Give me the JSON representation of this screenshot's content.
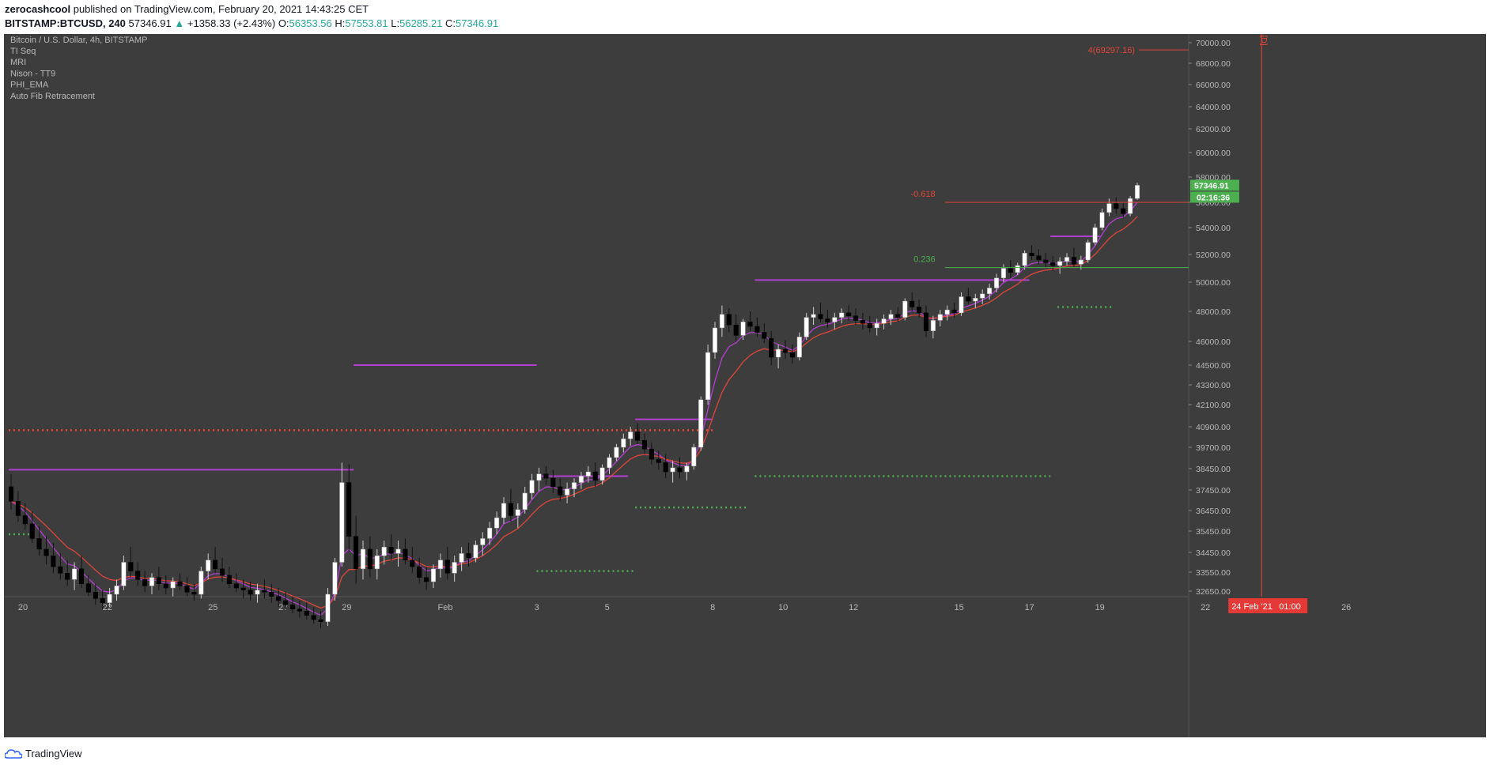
{
  "header": {
    "user": "zerocashcool",
    "published_text": "published on TradingView.com, February 20, 2021 14:43:25 CET",
    "symbol": "BITSTAMP:BTCUSD, 240",
    "last": "57346.91",
    "change": "+1358.33 (+2.43%)",
    "o_label": "O:",
    "o": "56353.56",
    "h_label": "H:",
    "h": "57553.81",
    "l_label": "L:",
    "l": "56285.21",
    "c_label": "C:",
    "c": "57346.91"
  },
  "legend": {
    "title": "Bitcoin / U.S. Dollar, 4h, BITSTAMP",
    "indicators": [
      "TI Seq",
      "MRI",
      "Nison - TT9",
      "PHI_EMA",
      "Auto Fib Retracement"
    ]
  },
  "footer": {
    "brand": "TradingView"
  },
  "colors": {
    "background": "#3d3d3d",
    "axis_bg": "#3d3d3d",
    "candle_up": "#ffffff",
    "candle_down": "#000000",
    "ema_fast": "#b33fd0",
    "ema_slow": "#e0453a",
    "fib_red": "#e0453a",
    "fib_green": "#4caf50",
    "resistance": "#b33fd0",
    "support_dots_red": "#f44336",
    "support_dots_green": "#4caf50",
    "seq_green": "#3c9a3c",
    "price_tag": "#4caf50",
    "crosshair": "#f44336"
  },
  "chart_data": {
    "type": "candlestick",
    "title": "Bitcoin / U.S. Dollar, 4h, BITSTAMP",
    "price_axis": {
      "ticks": [
        70000,
        68000,
        66000,
        64000,
        62000,
        60000,
        58000,
        56000,
        54000,
        52000,
        50000,
        48000,
        46000,
        44500,
        43300,
        42100,
        40900,
        39700,
        38450,
        37450,
        36450,
        35450,
        34450,
        33550,
        32650
      ],
      "tick_labels": [
        "70000.00",
        "68000.00",
        "66000.00",
        "64000.00",
        "62000.00",
        "60000.00",
        "58000.00",
        "56000.00",
        "54000.00",
        "52000.00",
        "50000.00",
        "48000.00",
        "46000.00",
        "44500.00",
        "43300.00",
        "42100.00",
        "40900.00",
        "39700.00",
        "38450.00",
        "37450.00",
        "36450.00",
        "35450.00",
        "34450.00",
        "33550.00",
        "32650.00"
      ]
    },
    "time_axis": {
      "labels": [
        "20",
        "22",
        "25",
        "27",
        "29",
        "Feb",
        "3",
        "5",
        "8",
        "10",
        "12",
        "15",
        "17",
        "19",
        "22",
        "26"
      ],
      "label_bar": [
        0,
        12,
        27,
        37,
        46,
        60,
        73,
        83,
        98,
        108,
        118,
        133,
        143,
        153,
        168,
        188
      ]
    },
    "last_price": "57346.91",
    "countdown": "02:16:36",
    "crosshair_time": "24 Feb '21",
    "crosshair_clock": "01:00",
    "crosshair_bar": 178,
    "interval_marker": "[D]",
    "fib_levels": [
      {
        "label": "-0.618",
        "price": 56000,
        "start_bar": 133
      },
      {
        "label": "0.236",
        "price": 51050,
        "start_bar": 133
      }
    ],
    "target": {
      "label": "4(69297.16)",
      "price": 69297.16,
      "start_bar": 160
    },
    "resistance_lines": [
      {
        "price": 38400,
        "from": 0,
        "to": 49
      },
      {
        "price": 44500,
        "from": 49,
        "to": 75
      },
      {
        "price": 41300,
        "from": 89,
        "to": 100
      },
      {
        "price": 38100,
        "from": 75,
        "to": 88
      },
      {
        "price": 50150,
        "from": 106,
        "to": 145
      },
      {
        "price": 53350,
        "from": 148,
        "to": 155
      }
    ],
    "support_dots": [
      {
        "price": 40700,
        "from": 0,
        "to": 100,
        "color": "red"
      },
      {
        "price": 35300,
        "from": 0,
        "to": 3,
        "color": "green"
      },
      {
        "price": 33600,
        "from": 75,
        "to": 89,
        "color": "green"
      },
      {
        "price": 36600,
        "from": 89,
        "to": 105,
        "color": "green"
      },
      {
        "price": 38100,
        "from": 106,
        "to": 148,
        "color": "green"
      },
      {
        "price": 48300,
        "from": 149,
        "to": 157,
        "color": "green"
      }
    ],
    "ohlc": [
      [
        37600,
        38200,
        36500,
        36900
      ],
      [
        36900,
        37400,
        35900,
        36200
      ],
      [
        36200,
        36800,
        35500,
        35800
      ],
      [
        35800,
        36400,
        34900,
        35100
      ],
      [
        35100,
        35700,
        34300,
        34600
      ],
      [
        34600,
        35200,
        33900,
        34300
      ],
      [
        34300,
        34900,
        33500,
        33800
      ],
      [
        33800,
        34400,
        33200,
        33500
      ],
      [
        33500,
        34100,
        32900,
        33200
      ],
      [
        33200,
        34000,
        32700,
        33700
      ],
      [
        33700,
        34300,
        32800,
        33000
      ],
      [
        33000,
        33400,
        32400,
        32600
      ],
      [
        32600,
        33000,
        32000,
        32300
      ],
      [
        32300,
        32700,
        31800,
        32100
      ],
      [
        32100,
        32800,
        31900,
        32500
      ],
      [
        32500,
        33200,
        32200,
        32900
      ],
      [
        32900,
        34300,
        32700,
        34000
      ],
      [
        34000,
        34700,
        33300,
        33600
      ],
      [
        33600,
        34000,
        32900,
        33200
      ],
      [
        33200,
        33600,
        32600,
        32900
      ],
      [
        32900,
        33500,
        32500,
        33300
      ],
      [
        33300,
        33800,
        32700,
        33000
      ],
      [
        33000,
        33400,
        32500,
        32800
      ],
      [
        32800,
        33300,
        32400,
        33100
      ],
      [
        33100,
        33500,
        32700,
        32900
      ],
      [
        32900,
        33300,
        32400,
        32600
      ],
      [
        32600,
        33000,
        32200,
        32500
      ],
      [
        32500,
        33800,
        32300,
        33600
      ],
      [
        33600,
        34400,
        33200,
        34100
      ],
      [
        34100,
        34700,
        33500,
        33700
      ],
      [
        33700,
        34200,
        33100,
        33400
      ],
      [
        33400,
        33800,
        32800,
        33000
      ],
      [
        33000,
        33500,
        32600,
        32800
      ],
      [
        32800,
        33200,
        32300,
        32700
      ],
      [
        32700,
        33100,
        32200,
        32500
      ],
      [
        32500,
        33000,
        32100,
        32700
      ],
      [
        32700,
        33200,
        32300,
        32600
      ],
      [
        32600,
        33000,
        32100,
        32400
      ],
      [
        32400,
        32800,
        31900,
        32200
      ],
      [
        32200,
        32600,
        31800,
        32000
      ],
      [
        32000,
        32400,
        31600,
        31800
      ],
      [
        31800,
        32200,
        31400,
        31700
      ],
      [
        31700,
        32100,
        31300,
        31500
      ],
      [
        31500,
        31900,
        31100,
        31300
      ],
      [
        31300,
        31700,
        30900,
        31200
      ],
      [
        31200,
        32800,
        31000,
        32500
      ],
      [
        32500,
        34200,
        32200,
        34000
      ],
      [
        34000,
        38800,
        33800,
        37800
      ],
      [
        37800,
        38700,
        34500,
        35200
      ],
      [
        35200,
        36200,
        33000,
        33700
      ],
      [
        33700,
        35000,
        33200,
        34600
      ],
      [
        34600,
        35200,
        33300,
        33700
      ],
      [
        33700,
        34600,
        33200,
        34300
      ],
      [
        34300,
        35000,
        33900,
        34700
      ],
      [
        34700,
        35300,
        34100,
        34400
      ],
      [
        34400,
        35000,
        33800,
        34600
      ],
      [
        34600,
        35100,
        33900,
        34100
      ],
      [
        34100,
        34700,
        33500,
        33800
      ],
      [
        33800,
        34200,
        33000,
        33300
      ],
      [
        33300,
        33800,
        32700,
        33100
      ],
      [
        33100,
        33900,
        32800,
        33700
      ],
      [
        33700,
        34400,
        33300,
        34100
      ],
      [
        34100,
        34700,
        33200,
        33500
      ],
      [
        33500,
        34300,
        33100,
        34000
      ],
      [
        34000,
        34700,
        33600,
        34400
      ],
      [
        34400,
        34900,
        33800,
        34200
      ],
      [
        34200,
        35000,
        34000,
        34800
      ],
      [
        34800,
        35400,
        34300,
        35100
      ],
      [
        35100,
        35900,
        34800,
        35600
      ],
      [
        35600,
        36400,
        35300,
        36100
      ],
      [
        36100,
        37100,
        35800,
        36800
      ],
      [
        36800,
        37500,
        35900,
        36200
      ],
      [
        36200,
        36800,
        35600,
        36500
      ],
      [
        36500,
        37600,
        36300,
        37300
      ],
      [
        37300,
        38200,
        37000,
        37900
      ],
      [
        37900,
        38500,
        37400,
        38200
      ],
      [
        38200,
        38600,
        37700,
        38000
      ],
      [
        38000,
        38400,
        37300,
        37600
      ],
      [
        37600,
        38000,
        36900,
        37200
      ],
      [
        37200,
        37800,
        36800,
        37500
      ],
      [
        37500,
        38000,
        37100,
        37800
      ],
      [
        37800,
        38300,
        37500,
        38100
      ],
      [
        38100,
        38600,
        37800,
        38300
      ],
      [
        38300,
        38800,
        37600,
        37900
      ],
      [
        37900,
        38700,
        37700,
        38500
      ],
      [
        38500,
        39300,
        38200,
        39100
      ],
      [
        39100,
        39900,
        38900,
        39700
      ],
      [
        39700,
        40500,
        39400,
        40200
      ],
      [
        40200,
        40900,
        39800,
        40600
      ],
      [
        40600,
        41100,
        39900,
        40100
      ],
      [
        40100,
        40500,
        39300,
        39600
      ],
      [
        39600,
        40000,
        38700,
        39000
      ],
      [
        39000,
        39500,
        38400,
        38800
      ],
      [
        38800,
        39300,
        38000,
        38300
      ],
      [
        38300,
        38900,
        37800,
        38500
      ],
      [
        38500,
        39100,
        38000,
        38300
      ],
      [
        38300,
        38800,
        37900,
        38600
      ],
      [
        38600,
        39900,
        38400,
        39700
      ],
      [
        39700,
        42600,
        39500,
        42400
      ],
      [
        42400,
        45800,
        42100,
        45300
      ],
      [
        45300,
        47300,
        44900,
        46900
      ],
      [
        46900,
        48400,
        46300,
        47800
      ],
      [
        47800,
        48200,
        46600,
        47100
      ],
      [
        47100,
        47800,
        46000,
        46400
      ],
      [
        46400,
        47500,
        46100,
        47300
      ],
      [
        47300,
        48000,
        46700,
        47000
      ],
      [
        47000,
        47600,
        46300,
        46600
      ],
      [
        46600,
        47200,
        45900,
        46200
      ],
      [
        46200,
        46700,
        44500,
        45000
      ],
      [
        45000,
        45800,
        44300,
        45500
      ],
      [
        45500,
        46100,
        44900,
        45300
      ],
      [
        45300,
        45800,
        44600,
        45000
      ],
      [
        45000,
        46600,
        44800,
        46300
      ],
      [
        46300,
        47900,
        46100,
        47600
      ],
      [
        47600,
        48300,
        47100,
        47800
      ],
      [
        47800,
        48600,
        47300,
        47500
      ],
      [
        47500,
        48100,
        46900,
        47300
      ],
      [
        47300,
        47900,
        46800,
        47600
      ],
      [
        47600,
        48200,
        47200,
        47900
      ],
      [
        47900,
        48400,
        47400,
        47700
      ],
      [
        47700,
        48200,
        47100,
        47400
      ],
      [
        47400,
        47900,
        46800,
        47200
      ],
      [
        47200,
        47700,
        46600,
        46900
      ],
      [
        46900,
        47500,
        46400,
        47200
      ],
      [
        47200,
        47800,
        46800,
        47500
      ],
      [
        47500,
        48100,
        47100,
        47800
      ],
      [
        47800,
        48300,
        47300,
        47600
      ],
      [
        47600,
        48900,
        47400,
        48700
      ],
      [
        48700,
        49300,
        48000,
        48300
      ],
      [
        48300,
        48800,
        47600,
        47900
      ],
      [
        47900,
        48400,
        46300,
        46700
      ],
      [
        46700,
        47700,
        46200,
        47400
      ],
      [
        47400,
        48100,
        47000,
        47800
      ],
      [
        47800,
        48400,
        47400,
        48100
      ],
      [
        48100,
        48600,
        47600,
        47900
      ],
      [
        47900,
        49300,
        47700,
        49000
      ],
      [
        49000,
        49600,
        48500,
        48700
      ],
      [
        48700,
        49200,
        48200,
        48900
      ],
      [
        48900,
        49500,
        48500,
        49200
      ],
      [
        49200,
        49900,
        48800,
        49600
      ],
      [
        49600,
        50600,
        49300,
        50300
      ],
      [
        50300,
        51300,
        50000,
        51000
      ],
      [
        51000,
        51600,
        50300,
        50700
      ],
      [
        50700,
        51400,
        50500,
        51200
      ],
      [
        51200,
        52300,
        50900,
        52100
      ],
      [
        52100,
        52700,
        51600,
        51900
      ],
      [
        51900,
        52400,
        51300,
        51600
      ],
      [
        51600,
        52100,
        51000,
        51400
      ],
      [
        51400,
        51900,
        50800,
        51200
      ],
      [
        51200,
        51800,
        50600,
        51500
      ],
      [
        51500,
        52100,
        51200,
        51800
      ],
      [
        51800,
        52500,
        51100,
        51300
      ],
      [
        51300,
        51900,
        50900,
        51600
      ],
      [
        51600,
        53100,
        51400,
        52900
      ],
      [
        52900,
        54300,
        52700,
        54000
      ],
      [
        54000,
        55500,
        53800,
        55200
      ],
      [
        55200,
        56300,
        54900,
        55900
      ],
      [
        55900,
        56400,
        55100,
        55500
      ],
      [
        55500,
        56000,
        54800,
        55100
      ],
      [
        55100,
        56500,
        54900,
        56300
      ],
      [
        56300,
        57550,
        56200,
        57346.91
      ]
    ]
  }
}
